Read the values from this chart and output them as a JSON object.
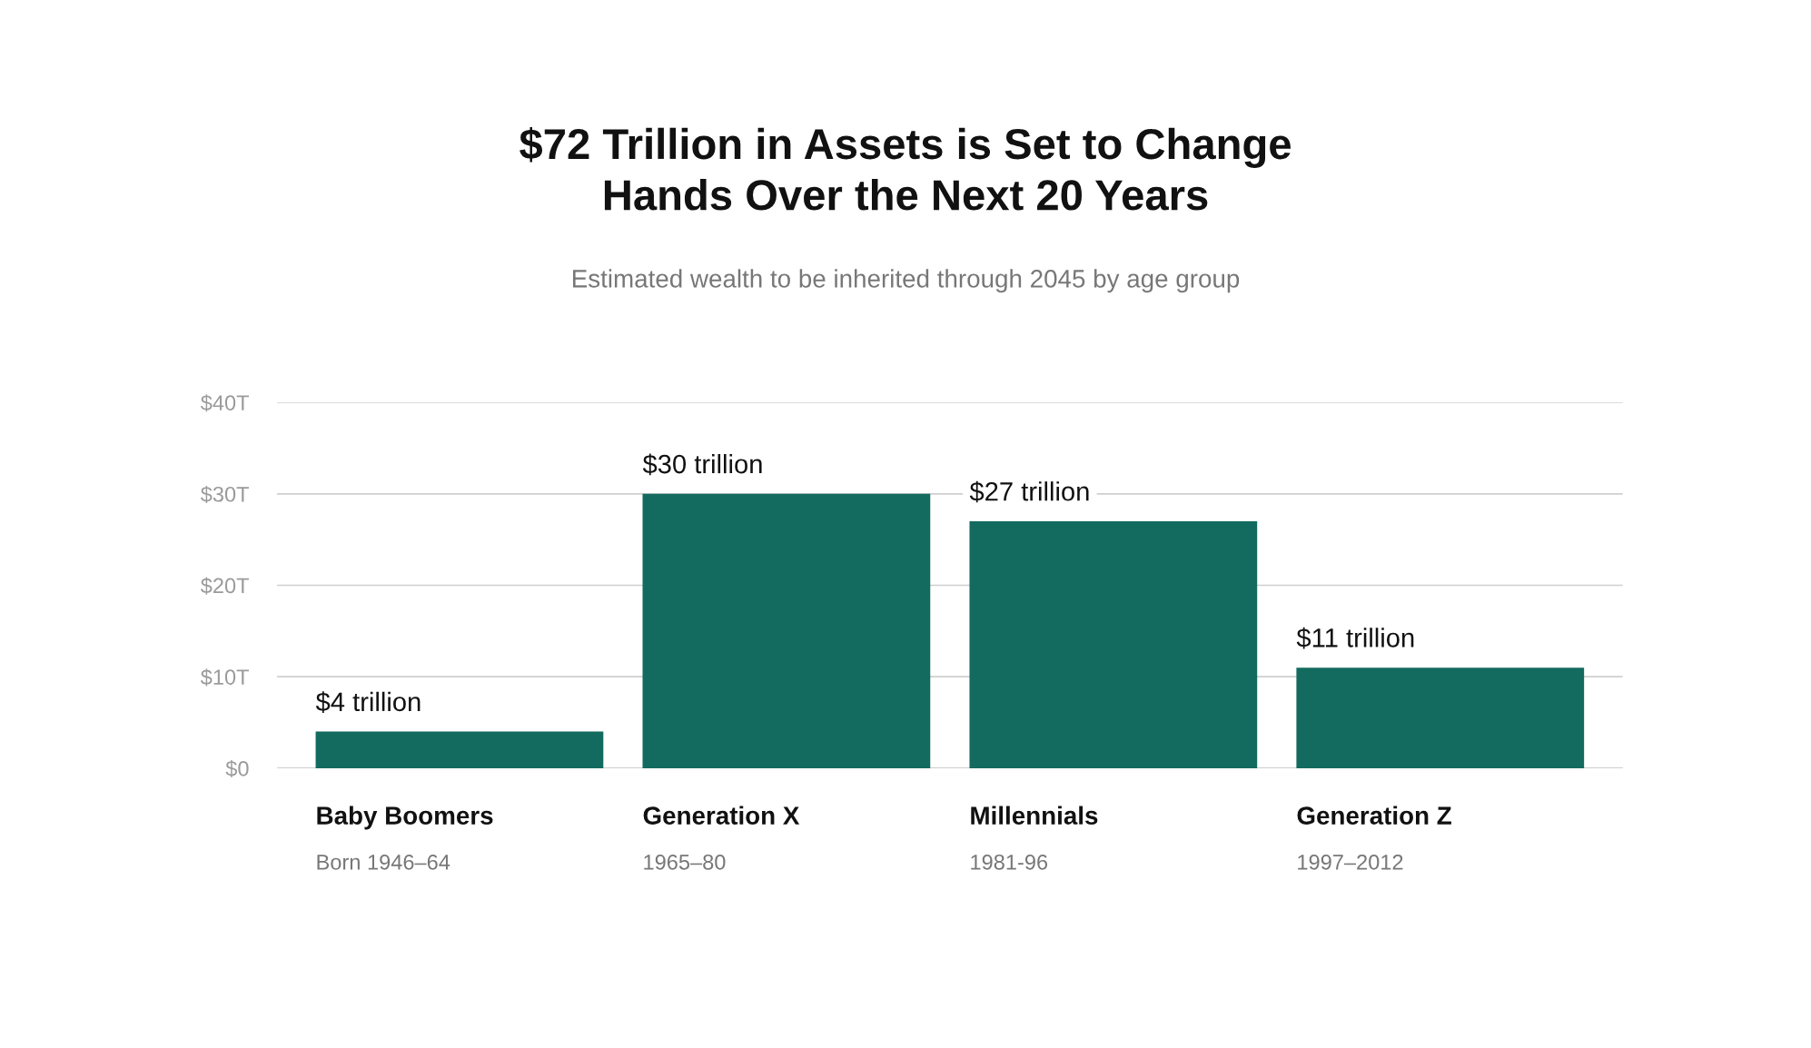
{
  "chart_data": {
    "type": "bar",
    "title": "$72 Trillion in Assets is Set to Change\nHands Over the Next 20 Years",
    "subtitle": "Estimated wealth to be inherited through 2045 by age group",
    "categories": [
      "Baby Boomers\nBorn 1946–64",
      "Generation X\n1965–80",
      "Millennials\n1981-96",
      "Generation Z\n1997–2012"
    ],
    "values": [
      4,
      30,
      27,
      11
    ],
    "value_labels": [
      "$4 trillion",
      "$30 trillion",
      "$27 trillion",
      "$11 trillion"
    ],
    "color": "#136b5f",
    "ylim": [
      0,
      40
    ],
    "yticks": [
      {
        "value": 0,
        "label": "$0"
      },
      {
        "value": 10,
        "label": "$10T"
      },
      {
        "value": 20,
        "label": "$20T"
      },
      {
        "value": 30,
        "label": "$30T"
      },
      {
        "value": 40,
        "label": "$40T"
      }
    ],
    "grid": "y"
  }
}
